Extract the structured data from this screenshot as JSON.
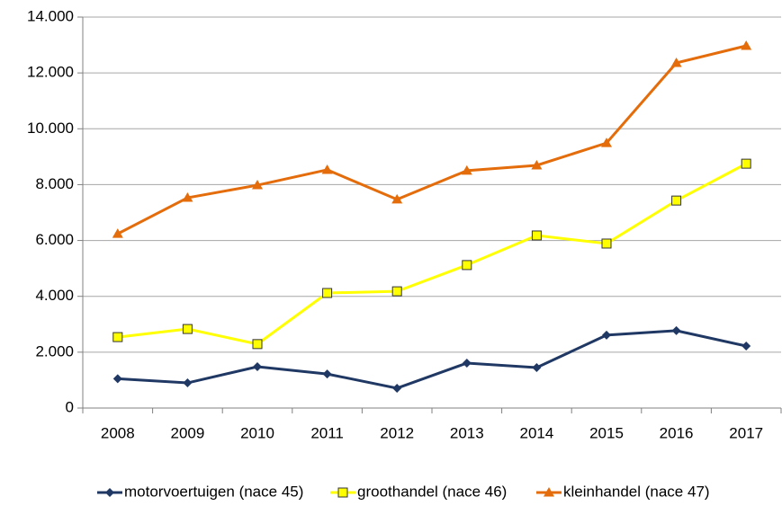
{
  "chart_data": {
    "type": "line",
    "categories": [
      "2008",
      "2009",
      "2010",
      "2011",
      "2012",
      "2013",
      "2014",
      "2015",
      "2016",
      "2017"
    ],
    "series": [
      {
        "name": "motorvoertuigen (nace 45)",
        "color": "#203864",
        "marker": "diamond",
        "values": [
          1050,
          900,
          1480,
          1220,
          710,
          1610,
          1450,
          2610,
          2770,
          2220
        ]
      },
      {
        "name": "groothandel (nace 46)",
        "color": "#ffff00",
        "marker": "square",
        "values": [
          2540,
          2830,
          2290,
          4120,
          4180,
          5120,
          6180,
          5890,
          7430,
          8750
        ]
      },
      {
        "name": "kleinhandel (nace 47)",
        "color": "#e46c0a",
        "marker": "triangle",
        "values": [
          6240,
          7530,
          7980,
          8530,
          7470,
          8500,
          8690,
          9490,
          12360,
          12970
        ]
      }
    ],
    "ylim": [
      0,
      14000
    ],
    "yticks": [
      0,
      {
        "value": 2000,
        "label": "2.000"
      },
      {
        "value": 4000,
        "label": "4.000"
      },
      {
        "value": 6000,
        "label": "6.000"
      },
      {
        "value": 8000,
        "label": "8.000"
      },
      {
        "value": 10000,
        "label": "10.000"
      },
      {
        "value": 12000,
        "label": "12.000"
      },
      {
        "value": 14000,
        "label": "14.000"
      }
    ],
    "grid": true,
    "legend": "bottom"
  }
}
